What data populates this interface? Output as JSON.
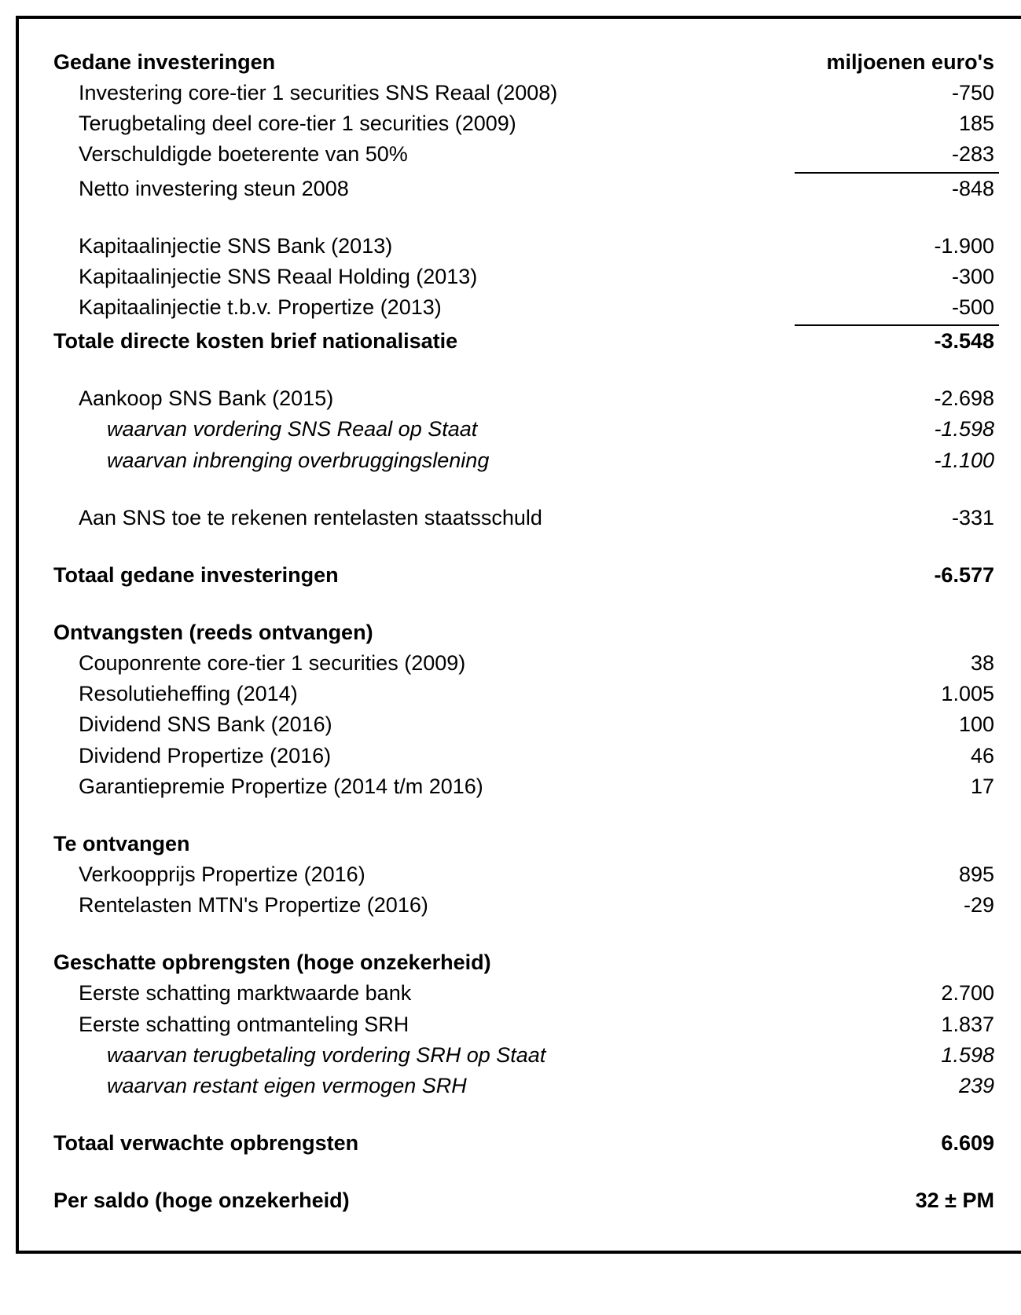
{
  "header": {
    "title": "Gedane investeringen",
    "unit": "miljoenen euro's"
  },
  "investeringen": {
    "items_a": [
      {
        "label": "Investering core-tier 1 securities SNS Reaal (2008)",
        "value": "-750"
      },
      {
        "label": "Terugbetaling deel core-tier 1 securities (2009)",
        "value": "185"
      },
      {
        "label": "Verschuldigde boeterente van 50%",
        "value": "-283"
      },
      {
        "label": "Netto investering steun 2008",
        "value": "-848"
      }
    ],
    "items_b": [
      {
        "label": "Kapitaalinjectie SNS Bank (2013)",
        "value": "-1.900"
      },
      {
        "label": "Kapitaalinjectie SNS Reaal Holding (2013)",
        "value": "-300"
      },
      {
        "label": "Kapitaalinjectie t.b.v. Propertize (2013)",
        "value": "-500"
      }
    ],
    "subtotal1": {
      "label": "Totale directe kosten brief nationalisatie",
      "value": "-3.548"
    },
    "items_c": [
      {
        "label": "Aankoop SNS Bank (2015)",
        "value": "-2.698"
      },
      {
        "label": "waarvan vordering SNS Reaal op Staat",
        "value": "-1.598"
      },
      {
        "label": "waarvan inbrenging overbruggingslening",
        "value": "-1.100"
      }
    ],
    "items_d": [
      {
        "label": "Aan SNS toe te rekenen rentelasten staatsschuld",
        "value": "-331"
      }
    ],
    "total": {
      "label": "Totaal gedane investeringen",
      "value": "-6.577"
    }
  },
  "ontvangsten": {
    "header": "Ontvangsten (reeds ontvangen)",
    "items": [
      {
        "label": "Couponrente core-tier 1 securities (2009)",
        "value": "38"
      },
      {
        "label": "Resolutieheffing (2014)",
        "value": "1.005"
      },
      {
        "label": "Dividend SNS Bank (2016)",
        "value": "100"
      },
      {
        "label": "Dividend Propertize (2016)",
        "value": "46"
      },
      {
        "label": "Garantiepremie Propertize (2014 t/m 2016)",
        "value": "17"
      }
    ]
  },
  "te_ontvangen": {
    "header": "Te ontvangen",
    "items": [
      {
        "label": "Verkoopprijs Propertize (2016)",
        "value": "895"
      },
      {
        "label": "Rentelasten MTN's Propertize (2016)",
        "value": "-29"
      }
    ]
  },
  "geschat": {
    "header": "Geschatte opbrengsten (hoge onzekerheid)",
    "items": [
      {
        "label": "Eerste schatting marktwaarde bank",
        "value": "2.700"
      },
      {
        "label": "Eerste schatting ontmanteling SRH",
        "value": "1.837"
      },
      {
        "label": "waarvan terugbetaling vordering SRH op Staat",
        "value": "1.598"
      },
      {
        "label": "waarvan restant eigen vermogen SRH",
        "value": "239"
      }
    ]
  },
  "totaal_opbrengsten": {
    "label": "Totaal verwachte opbrengsten",
    "value": "6.609"
  },
  "saldo": {
    "label": "Per saldo (hoge onzekerheid)",
    "value": "32 ± PM"
  }
}
